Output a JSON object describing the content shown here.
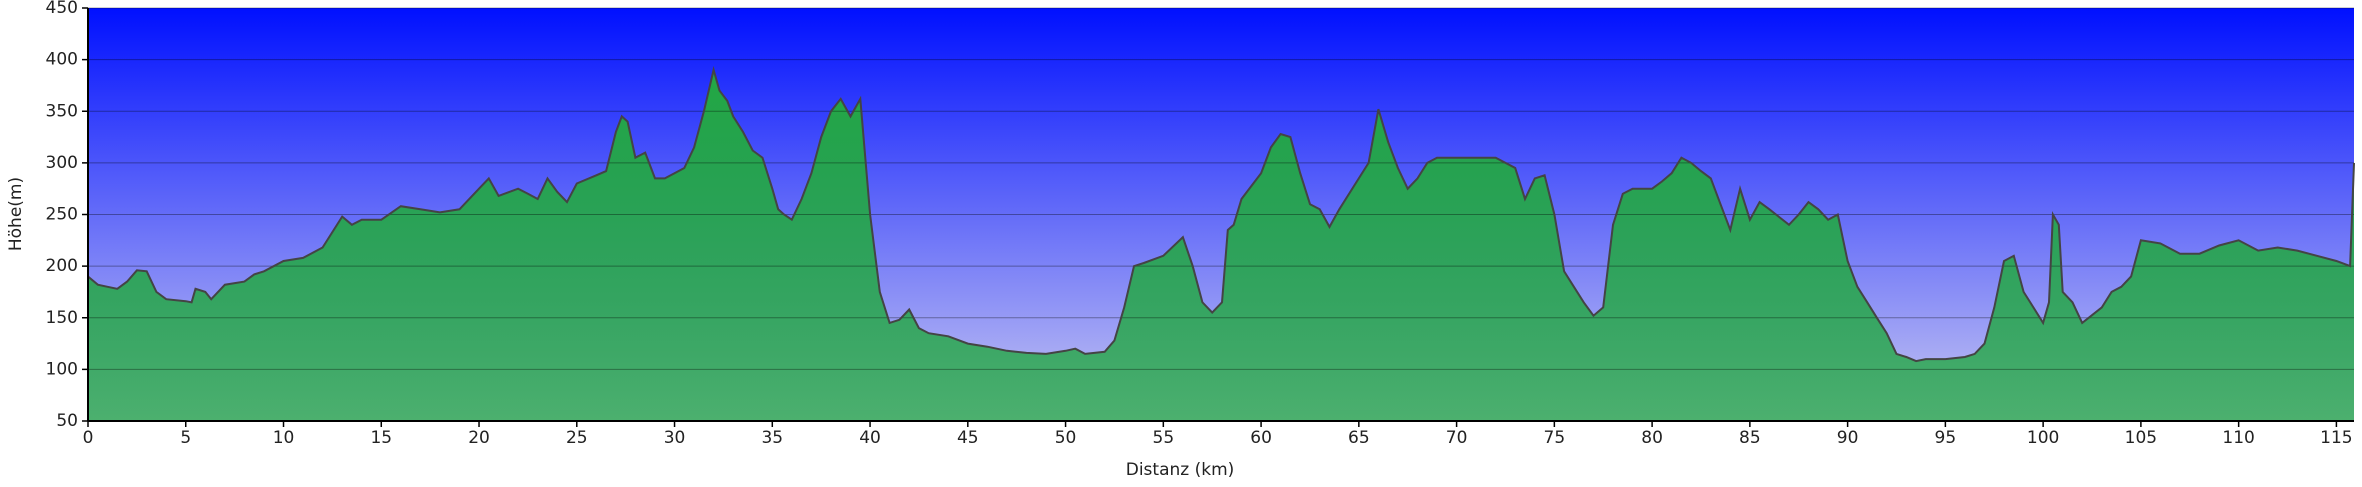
{
  "chart_data": {
    "type": "area",
    "xlabel": "Distanz (km)",
    "ylabel": "Höhe(m)",
    "x": [
      0,
      0.5,
      1,
      1.5,
      2,
      2.5,
      3,
      3.5,
      4,
      5,
      5.3,
      5.5,
      6,
      6.3,
      7,
      8,
      8.5,
      9,
      10,
      11,
      12,
      13,
      13.5,
      14,
      15,
      16,
      17,
      18,
      19,
      20,
      20.5,
      21,
      22,
      22.5,
      23,
      23.5,
      24,
      24.5,
      25,
      26,
      26.5,
      27,
      27.3,
      27.6,
      28,
      28.5,
      29,
      29.5,
      30,
      30.5,
      31,
      31.5,
      32,
      32.3,
      32.7,
      33,
      33.5,
      34,
      34.5,
      35,
      35.3,
      35.6,
      36,
      36.5,
      37,
      37.5,
      38,
      38.5,
      39,
      39.5,
      40,
      40.5,
      41,
      41.5,
      42,
      42.5,
      43,
      44,
      45,
      46,
      47,
      48,
      49,
      50,
      50.5,
      51,
      52,
      52.5,
      53,
      53.5,
      54,
      55,
      56,
      56.5,
      57,
      57.5,
      58,
      58.3,
      58.6,
      59,
      60,
      60.5,
      61,
      61.5,
      62,
      62.5,
      63,
      63.5,
      64,
      65,
      65.5,
      66,
      66.5,
      67,
      67.5,
      68,
      68.5,
      69,
      70,
      71,
      72,
      73,
      73.5,
      74,
      74.5,
      75,
      75.5,
      76,
      76.5,
      77,
      77.5,
      78,
      78.5,
      79,
      80,
      80.5,
      81,
      81.5,
      82,
      82.5,
      83,
      83.5,
      84,
      84.5,
      85,
      85.5,
      86,
      87,
      87.5,
      88,
      88.5,
      89,
      89.5,
      90,
      90.5,
      91,
      91.5,
      92,
      92.5,
      93,
      93.5,
      94,
      95,
      96,
      96.5,
      97,
      97.5,
      98,
      98.5,
      99,
      99.5,
      100,
      100.3,
      100.5,
      100.8,
      101,
      101.5,
      102,
      103,
      103.5,
      104,
      104.5,
      105,
      106,
      107,
      108,
      109,
      110,
      111,
      112,
      113,
      114,
      115,
      115.7,
      115.9
    ],
    "values": [
      190,
      182,
      180,
      178,
      185,
      196,
      195,
      175,
      168,
      166,
      165,
      178,
      175,
      168,
      182,
      185,
      192,
      195,
      205,
      208,
      218,
      248,
      240,
      245,
      245,
      258,
      255,
      252,
      255,
      275,
      285,
      268,
      275,
      270,
      265,
      285,
      272,
      262,
      280,
      288,
      292,
      330,
      345,
      340,
      305,
      310,
      285,
      285,
      290,
      295,
      315,
      350,
      390,
      370,
      360,
      345,
      330,
      312,
      305,
      275,
      255,
      250,
      245,
      265,
      290,
      325,
      350,
      362,
      345,
      362,
      250,
      175,
      145,
      148,
      158,
      140,
      135,
      132,
      125,
      122,
      118,
      116,
      115,
      118,
      120,
      115,
      117,
      128,
      160,
      200,
      203,
      210,
      228,
      200,
      165,
      155,
      165,
      235,
      240,
      265,
      290,
      315,
      328,
      325,
      290,
      260,
      255,
      238,
      255,
      285,
      300,
      352,
      320,
      295,
      275,
      285,
      300,
      305,
      305,
      305,
      305,
      295,
      265,
      285,
      288,
      250,
      195,
      180,
      165,
      152,
      160,
      240,
      270,
      275,
      275,
      282,
      290,
      305,
      300,
      292,
      285,
      260,
      235,
      275,
      245,
      262,
      255,
      240,
      250,
      262,
      255,
      245,
      250,
      205,
      180,
      165,
      150,
      135,
      115,
      112,
      108,
      110,
      110,
      112,
      115,
      125,
      160,
      205,
      210,
      175,
      160,
      145,
      165,
      250,
      240,
      175,
      165,
      145,
      160,
      175,
      180,
      190,
      225,
      222,
      212,
      212,
      220,
      225,
      215,
      218,
      215,
      210,
      205,
      200,
      300
    ],
    "color": "#23a843",
    "line_color": "#444444",
    "background": [
      "#0010ff",
      "#c8c8f2"
    ],
    "xlim": [
      0,
      115.9
    ],
    "ylim": [
      50,
      450
    ],
    "xticks": [
      0,
      5,
      10,
      15,
      20,
      25,
      30,
      35,
      40,
      45,
      50,
      55,
      60,
      65,
      70,
      75,
      80,
      85,
      90,
      95,
      100,
      105,
      110,
      115
    ],
    "yticks": [
      50,
      100,
      150,
      200,
      250,
      300,
      350,
      400,
      450
    ],
    "grid": true
  }
}
